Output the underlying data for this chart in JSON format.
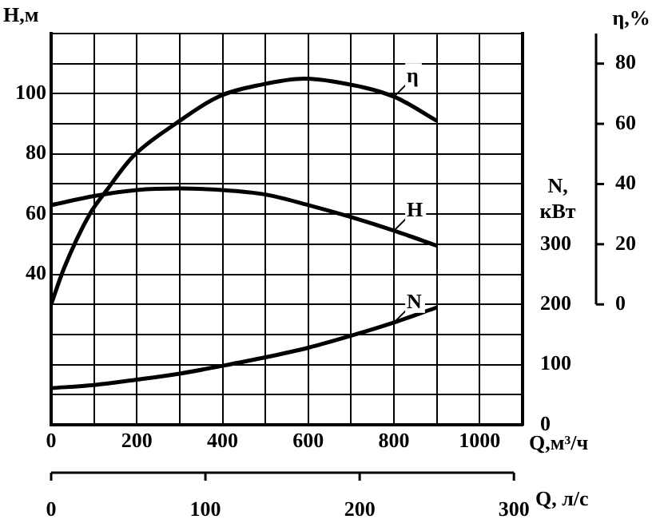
{
  "chart_data": {
    "type": "line",
    "xlabel": "Q,м³/ч",
    "x2label": "Q, л/с",
    "ylabel": "H,м",
    "y2label": "N,\nкВт",
    "y3label": "η,%",
    "x": [
      0,
      100,
      200,
      300,
      400,
      500,
      600,
      700,
      800,
      900
    ],
    "series": [
      {
        "name": "η",
        "color": "#000000",
        "axis": "y3",
        "x": [
          0,
          30,
          90,
          130,
          190,
          290,
          390,
          490,
          590,
          660,
          800,
          900
        ],
        "values": [
          0,
          12,
          30,
          38,
          49,
          60,
          69,
          73,
          75,
          74,
          69,
          61
        ]
      },
      {
        "name": "H",
        "color": "#000000",
        "axis": "y",
        "values": [
          63,
          66,
          68,
          68.5,
          68,
          66.5,
          63,
          59,
          54.5,
          49.5
        ]
      },
      {
        "name": "N",
        "color": "#000000",
        "axis": "y2",
        "values": [
          61,
          66,
          75,
          85,
          98,
          112,
          128,
          148,
          170,
          195
        ]
      }
    ],
    "xlim": [
      0,
      1100
    ],
    "xticks": [
      0,
      {
        "value": 100,
        "label": null
      },
      200,
      {
        "value": 300,
        "label": null
      },
      400,
      {
        "value": 500,
        "label": null
      },
      600,
      {
        "value": 700,
        "label": null
      },
      800,
      {
        "value": 900,
        "label": null
      },
      1000
    ],
    "x2lim": [
      0,
      305.6
    ],
    "x2ticks": [
      0,
      100,
      200,
      300
    ],
    "ylim": [
      -10,
      120
    ],
    "yticks": [
      {
        "value": -10,
        "label": null
      },
      {
        "value": 0,
        "label": null
      },
      {
        "value": 10,
        "label": null
      },
      {
        "value": 20,
        "label": null
      },
      {
        "value": 30,
        "label": null
      },
      40,
      {
        "value": 50,
        "label": null
      },
      60,
      {
        "value": 70,
        "label": null
      },
      80,
      {
        "value": 90,
        "label": null
      },
      100,
      {
        "value": 110,
        "label": null
      },
      {
        "value": 120,
        "label": null
      }
    ],
    "y2lim": [
      0,
      650
    ],
    "y2ticks": [
      0,
      100,
      200,
      300
    ],
    "y3lim": [
      -40,
      90
    ],
    "y3ticks": [
      0,
      20,
      40,
      60,
      80
    ],
    "grid": true,
    "legend": false,
    "marker": "none",
    "line_style": "solid"
  }
}
